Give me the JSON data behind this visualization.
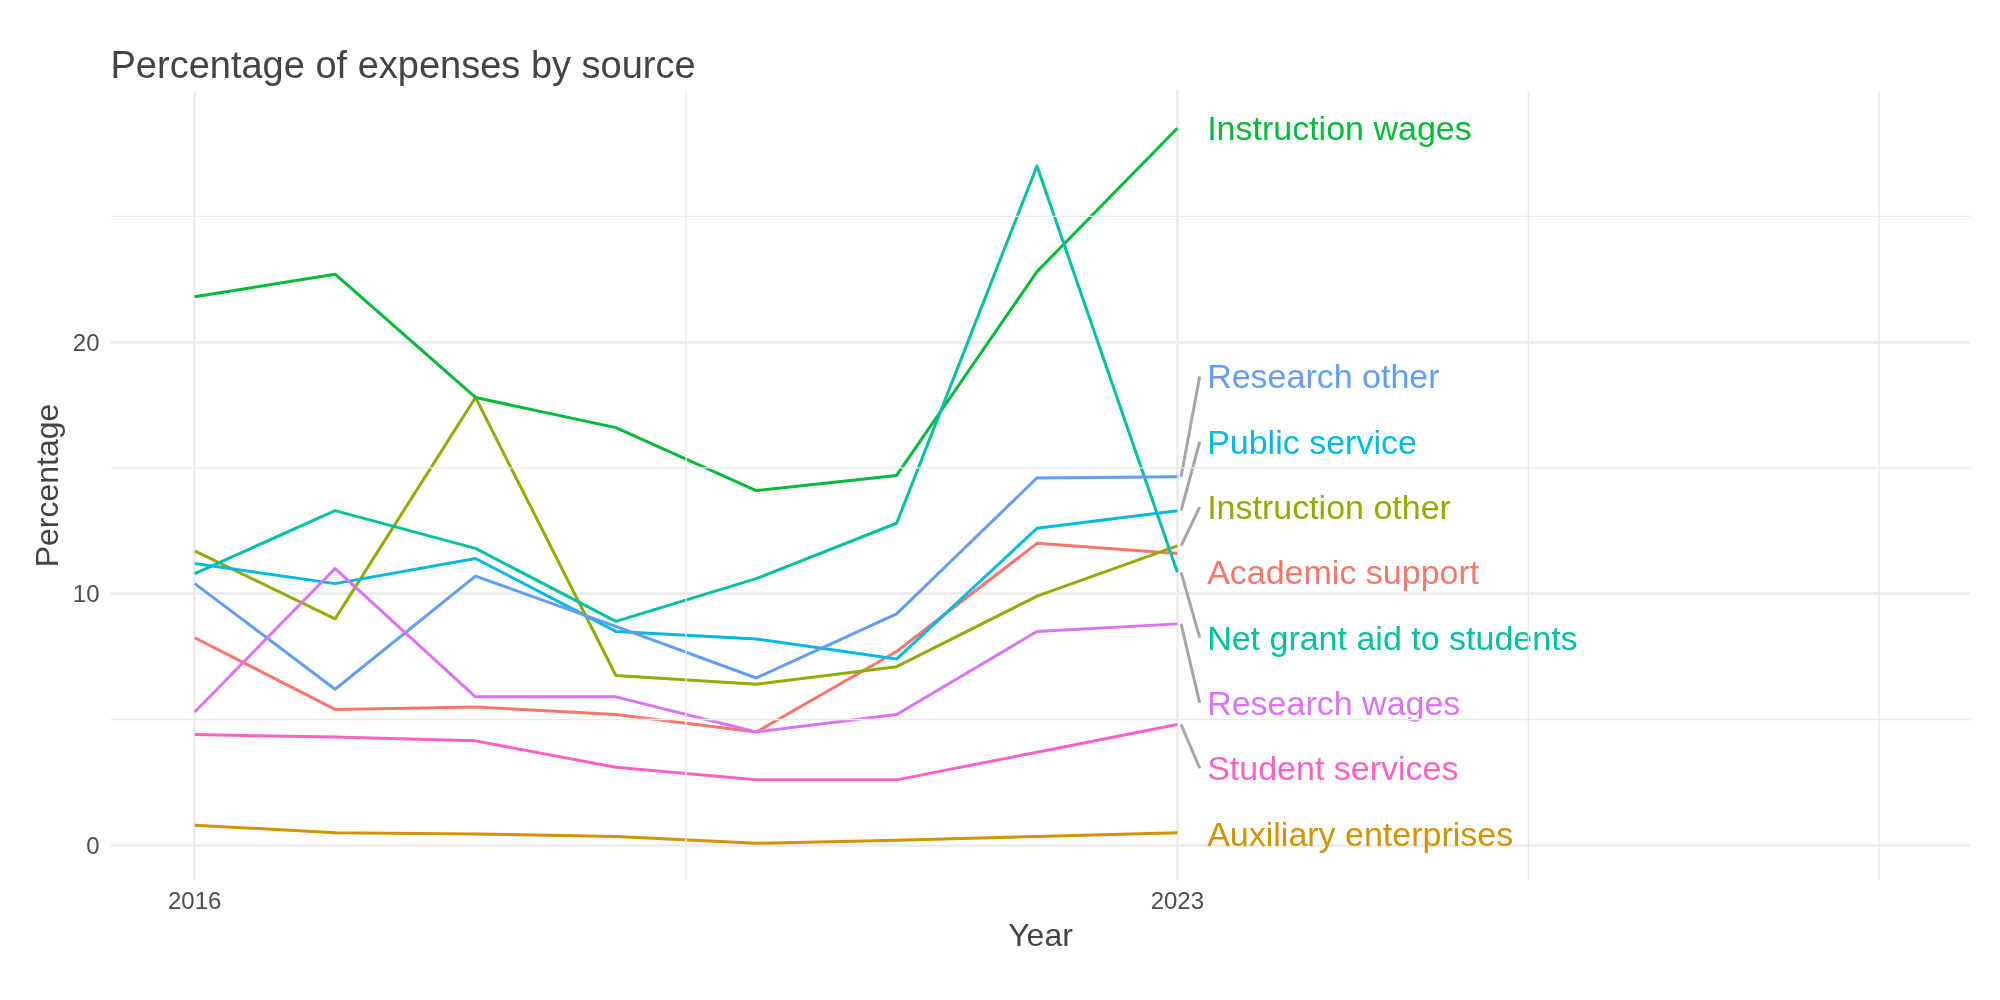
{
  "chart_data": {
    "type": "line",
    "title": "Percentage of expenses by source",
    "xlabel": "Year",
    "ylabel": "Percentage",
    "x": [
      2016,
      2017,
      2018,
      2019,
      2020,
      2021,
      2022,
      2023
    ],
    "xlim": [
      2015.4,
      2028.65
    ],
    "ylim": [
      -1.4,
      30
    ],
    "xticks": [
      2016,
      {
        "value": 2019.5,
        "label": null
      },
      2023,
      {
        "value": 2025.5,
        "label": null
      },
      {
        "value": 2028,
        "label": null
      }
    ],
    "yticks": [
      0,
      {
        "value": 5,
        "label": null
      },
      10,
      {
        "value": 15,
        "label": null
      },
      20,
      {
        "value": 25,
        "label": null
      }
    ],
    "grid": true,
    "series": [
      {
        "name": "Academic support",
        "color": "#f8766d",
        "values": [
          8.25,
          5.4,
          5.5,
          5.2,
          4.5,
          7.7,
          12.0,
          11.6
        ]
      },
      {
        "name": "Auxiliary enterprises",
        "color": "#d39200",
        "values": [
          0.8,
          0.5,
          0.45,
          0.35,
          0.08,
          0.2,
          0.35,
          0.5
        ]
      },
      {
        "name": "Instruction other",
        "color": "#93aa00",
        "values": [
          11.7,
          9.0,
          17.8,
          6.75,
          6.4,
          7.1,
          9.9,
          11.9
        ]
      },
      {
        "name": "Instruction wages",
        "color": "#00ba38",
        "values": [
          21.8,
          22.7,
          17.8,
          16.6,
          14.1,
          14.7,
          22.8,
          28.5
        ]
      },
      {
        "name": "Net grant aid to students",
        "color": "#00c19f",
        "values": [
          10.8,
          13.3,
          11.8,
          8.9,
          10.6,
          12.8,
          27.0,
          10.85
        ]
      },
      {
        "name": "Public service",
        "color": "#00b9e3",
        "values": [
          11.2,
          10.4,
          11.4,
          8.5,
          8.2,
          7.4,
          12.6,
          13.3
        ]
      },
      {
        "name": "Research other",
        "color": "#619cff",
        "values": [
          10.4,
          6.2,
          10.7,
          8.7,
          6.65,
          9.2,
          14.6,
          14.65
        ]
      },
      {
        "name": "Research wages",
        "color": "#db72fb",
        "values": [
          5.3,
          11.0,
          5.9,
          5.9,
          4.5,
          5.2,
          8.5,
          8.8
        ]
      },
      {
        "name": "Student services",
        "color": "#ff61c3",
        "values": [
          4.4,
          4.3,
          4.15,
          3.1,
          2.6,
          2.6,
          3.7,
          4.8
        ]
      }
    ]
  }
}
